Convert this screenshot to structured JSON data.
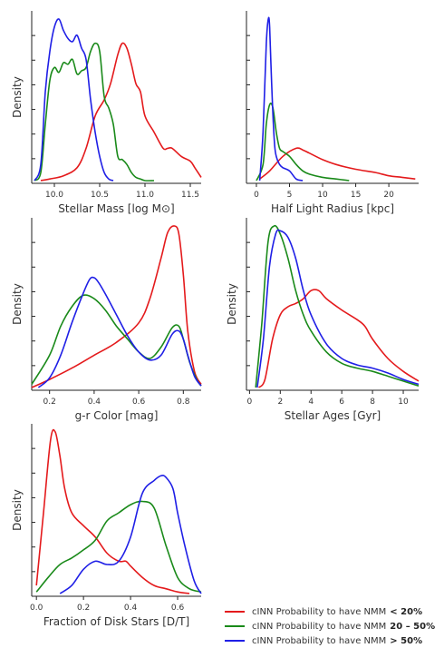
{
  "colors": {
    "red": "#e41a1c",
    "green": "#1a8a1a",
    "blue": "#1f1fe6"
  },
  "legend": {
    "items": [
      {
        "label": "cINN Probability to have NMM",
        "value": "< 20%",
        "color": "#e41a1c"
      },
      {
        "label": "cINN Probability to have NMM",
        "value": "20 – 50%",
        "color": "#1a8a1a"
      },
      {
        "label": "cINN Probability to have NMM",
        "value": "> 50%",
        "color": "#1f1fe6"
      }
    ]
  },
  "chart_data": [
    {
      "type": "line",
      "xlabel": "Stellar Mass [log M⊙]",
      "ylabel": "Density",
      "xlim": [
        9.75,
        11.62
      ],
      "ylim": [
        0,
        1.0
      ],
      "xticks": [
        "10.0",
        "10.5",
        "11.0",
        "11.5"
      ],
      "xtick_values": [
        10.0,
        10.5,
        11.0,
        11.5
      ],
      "series": [
        {
          "color": "red",
          "x": [
            9.85,
            9.95,
            10.1,
            10.25,
            10.35,
            10.45,
            10.55,
            10.62,
            10.7,
            10.75,
            10.8,
            10.85,
            10.9,
            10.95,
            11.0,
            11.1,
            11.2,
            11.25,
            11.3,
            11.4,
            11.5,
            11.55,
            11.62
          ],
          "y": [
            0.0,
            0.01,
            0.03,
            0.08,
            0.2,
            0.4,
            0.5,
            0.6,
            0.78,
            0.85,
            0.82,
            0.72,
            0.6,
            0.55,
            0.4,
            0.3,
            0.2,
            0.2,
            0.2,
            0.15,
            0.12,
            0.08,
            0.02
          ]
        },
        {
          "color": "green",
          "x": [
            9.78,
            9.85,
            9.9,
            9.95,
            10.0,
            10.05,
            10.1,
            10.15,
            10.2,
            10.25,
            10.3,
            10.35,
            10.4,
            10.45,
            10.5,
            10.55,
            10.6,
            10.65,
            10.7,
            10.75,
            10.8,
            10.85,
            10.9,
            10.95,
            11.0,
            11.1
          ],
          "y": [
            0.0,
            0.05,
            0.35,
            0.62,
            0.7,
            0.67,
            0.73,
            0.72,
            0.75,
            0.66,
            0.68,
            0.7,
            0.8,
            0.85,
            0.8,
            0.52,
            0.45,
            0.35,
            0.15,
            0.13,
            0.1,
            0.05,
            0.02,
            0.01,
            0.0,
            0.0
          ]
        },
        {
          "color": "blue",
          "x": [
            9.78,
            9.85,
            9.9,
            9.95,
            10.0,
            10.05,
            10.1,
            10.15,
            10.2,
            10.25,
            10.3,
            10.35,
            10.4,
            10.45,
            10.5,
            10.55,
            10.6,
            10.65
          ],
          "y": [
            0.0,
            0.1,
            0.55,
            0.8,
            0.95,
            1.0,
            0.93,
            0.88,
            0.86,
            0.9,
            0.82,
            0.75,
            0.5,
            0.3,
            0.15,
            0.05,
            0.01,
            0.0
          ]
        }
      ]
    },
    {
      "type": "line",
      "xlabel": "Half Light Radius [kpc]",
      "ylabel": "",
      "xlim": [
        -1.5,
        24.5
      ],
      "ylim": [
        0,
        1.0
      ],
      "xticks": [
        "0",
        "5",
        "10",
        "15",
        "20"
      ],
      "xtick_values": [
        0,
        5,
        10,
        15,
        20
      ],
      "series": [
        {
          "color": "red",
          "x": [
            0.5,
            2,
            4,
            6,
            7,
            8,
            10,
            12,
            15,
            18,
            20,
            22,
            24
          ],
          "y": [
            0.01,
            0.06,
            0.15,
            0.2,
            0.19,
            0.17,
            0.13,
            0.1,
            0.07,
            0.05,
            0.03,
            0.02,
            0.01
          ]
        },
        {
          "color": "green",
          "x": [
            0,
            1,
            1.5,
            2,
            2.5,
            3,
            3.5,
            4,
            5,
            6,
            7,
            8,
            10,
            12,
            14
          ],
          "y": [
            0.0,
            0.1,
            0.35,
            0.47,
            0.45,
            0.3,
            0.2,
            0.18,
            0.15,
            0.1,
            0.06,
            0.04,
            0.02,
            0.01,
            0.0
          ]
        },
        {
          "color": "blue",
          "x": [
            0.5,
            1,
            1.5,
            1.8,
            2,
            2.3,
            2.7,
            3,
            3.5,
            4,
            5,
            6,
            7
          ],
          "y": [
            0.0,
            0.3,
            0.85,
            1.0,
            0.95,
            0.6,
            0.25,
            0.15,
            0.1,
            0.08,
            0.06,
            0.01,
            0.0
          ]
        }
      ]
    },
    {
      "type": "line",
      "xlabel": "g-r Color [mag]",
      "ylabel": "Density",
      "xlim": [
        0.12,
        0.88
      ],
      "ylim": [
        0,
        1.0
      ],
      "xticks": [
        "0.2",
        "0.4",
        "0.6",
        "0.8"
      ],
      "xtick_values": [
        0.2,
        0.4,
        0.6,
        0.8
      ],
      "series": [
        {
          "color": "red",
          "x": [
            0.12,
            0.2,
            0.3,
            0.4,
            0.5,
            0.6,
            0.65,
            0.7,
            0.73,
            0.76,
            0.78,
            0.8,
            0.82,
            0.85,
            0.88
          ],
          "y": [
            0.0,
            0.05,
            0.12,
            0.2,
            0.28,
            0.4,
            0.55,
            0.8,
            0.96,
            1.0,
            0.95,
            0.7,
            0.35,
            0.1,
            0.02
          ]
        },
        {
          "color": "green",
          "x": [
            0.12,
            0.2,
            0.25,
            0.3,
            0.35,
            0.4,
            0.45,
            0.5,
            0.55,
            0.6,
            0.65,
            0.7,
            0.75,
            0.78,
            0.8,
            0.83,
            0.86,
            0.88
          ],
          "y": [
            0.02,
            0.2,
            0.38,
            0.5,
            0.57,
            0.55,
            0.48,
            0.38,
            0.3,
            0.22,
            0.18,
            0.25,
            0.37,
            0.38,
            0.3,
            0.15,
            0.05,
            0.01
          ]
        },
        {
          "color": "blue",
          "x": [
            0.15,
            0.2,
            0.25,
            0.3,
            0.35,
            0.38,
            0.4,
            0.42,
            0.45,
            0.5,
            0.55,
            0.6,
            0.65,
            0.7,
            0.75,
            0.78,
            0.8,
            0.82,
            0.85,
            0.88
          ],
          "y": [
            0.0,
            0.06,
            0.2,
            0.4,
            0.58,
            0.67,
            0.68,
            0.65,
            0.58,
            0.45,
            0.32,
            0.22,
            0.17,
            0.2,
            0.33,
            0.35,
            0.3,
            0.2,
            0.07,
            0.01
          ]
        }
      ]
    },
    {
      "type": "line",
      "xlabel": "Stellar Ages [Gyr]",
      "ylabel": "Density",
      "xlim": [
        -0.2,
        11.0
      ],
      "ylim": [
        0,
        1.0
      ],
      "xticks": [
        "0",
        "2",
        "4",
        "6",
        "8",
        "10"
      ],
      "xtick_values": [
        0,
        2,
        4,
        6,
        8,
        10
      ],
      "series": [
        {
          "color": "red",
          "x": [
            0.6,
            1,
            1.5,
            2,
            2.5,
            3,
            3.5,
            4,
            4.5,
            5,
            6,
            7,
            7.5,
            8,
            9,
            10,
            11
          ],
          "y": [
            0.0,
            0.05,
            0.3,
            0.45,
            0.5,
            0.52,
            0.55,
            0.6,
            0.6,
            0.55,
            0.48,
            0.42,
            0.38,
            0.3,
            0.18,
            0.1,
            0.04
          ]
        },
        {
          "color": "green",
          "x": [
            0.4,
            0.8,
            1.2,
            1.6,
            2,
            2.5,
            3,
            3.5,
            4,
            5,
            6,
            7,
            8,
            9,
            10,
            11
          ],
          "y": [
            0.0,
            0.4,
            0.9,
            1.0,
            0.95,
            0.8,
            0.6,
            0.45,
            0.35,
            0.22,
            0.15,
            0.12,
            0.1,
            0.07,
            0.04,
            0.01
          ]
        },
        {
          "color": "blue",
          "x": [
            0.5,
            0.9,
            1.3,
            1.7,
            2,
            2.5,
            3,
            3.5,
            4,
            5,
            6,
            7,
            8,
            9,
            10,
            11
          ],
          "y": [
            0.0,
            0.3,
            0.75,
            0.95,
            0.97,
            0.93,
            0.8,
            0.6,
            0.45,
            0.27,
            0.18,
            0.14,
            0.12,
            0.09,
            0.05,
            0.02
          ]
        }
      ]
    },
    {
      "type": "line",
      "xlabel": "Fraction of Disk Stars [D/T]",
      "ylabel": "Density",
      "xlim": [
        -0.02,
        0.7
      ],
      "ylim": [
        0,
        1.0
      ],
      "xticks": [
        "0.0",
        "0.2",
        "0.4",
        "0.6"
      ],
      "xtick_values": [
        0.0,
        0.2,
        0.4,
        0.6
      ],
      "series": [
        {
          "color": "red",
          "x": [
            0.0,
            0.03,
            0.06,
            0.08,
            0.1,
            0.12,
            0.15,
            0.2,
            0.25,
            0.3,
            0.35,
            0.38,
            0.4,
            0.45,
            0.5,
            0.55,
            0.6,
            0.65
          ],
          "y": [
            0.05,
            0.5,
            0.95,
            1.0,
            0.85,
            0.65,
            0.5,
            0.42,
            0.35,
            0.25,
            0.2,
            0.2,
            0.17,
            0.1,
            0.05,
            0.03,
            0.01,
            0.0
          ]
        },
        {
          "color": "green",
          "x": [
            0.0,
            0.05,
            0.1,
            0.15,
            0.2,
            0.25,
            0.3,
            0.35,
            0.4,
            0.45,
            0.5,
            0.55,
            0.6,
            0.65,
            0.7
          ],
          "y": [
            0.01,
            0.1,
            0.18,
            0.22,
            0.27,
            0.33,
            0.45,
            0.5,
            0.55,
            0.57,
            0.53,
            0.3,
            0.1,
            0.03,
            0.01
          ]
        },
        {
          "color": "blue",
          "x": [
            0.1,
            0.15,
            0.2,
            0.25,
            0.3,
            0.35,
            0.4,
            0.45,
            0.5,
            0.53,
            0.55,
            0.58,
            0.6,
            0.63,
            0.67,
            0.7
          ],
          "y": [
            0.0,
            0.05,
            0.15,
            0.2,
            0.18,
            0.2,
            0.35,
            0.62,
            0.7,
            0.73,
            0.72,
            0.65,
            0.5,
            0.3,
            0.08,
            0.0
          ]
        }
      ]
    }
  ]
}
